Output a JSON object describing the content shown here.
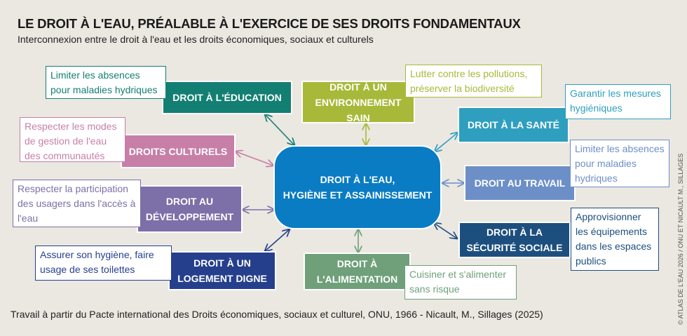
{
  "title": "LE DROIT À L'EAU, PRÉALABLE À L'EXERCICE DE SES DROITS FONDAMENTAUX",
  "subtitle": "Interconnexion entre le droit à l'eau et les droits économiques, sociaux et culturels",
  "center": {
    "line1": "DROIT À L'EAU,",
    "line2": "HYGIÈNE ET ASSAINISSEMENT",
    "color": "#0a7cc3"
  },
  "rights": [
    {
      "l1": "DROIT À L'ÉDUCATION",
      "l2": "",
      "note": "Limiter les absences pour maladies hydriques",
      "color": "#137f73"
    },
    {
      "l1": "DROITS CULTURELS",
      "l2": "",
      "note": "Respecter les modes de gestion de l'eau des communautés",
      "color": "#c77fa8"
    },
    {
      "l1": "DROIT AU",
      "l2": "DÉVELOPPEMENT",
      "note": "Respecter la participation des usagers dans l'accès à l'eau",
      "color": "#7d6fa8"
    },
    {
      "l1": "DROIT À UN",
      "l2": "LOGEMENT DIGNE",
      "note": "Assurer son hygiène, faire usage de ses toilettes",
      "color": "#263f8c"
    },
    {
      "l1": "DROIT À UN",
      "l2": "ENVIRONNEMENT SAIN",
      "note": "Lutter contre les pollutions, préserver la biodiversité",
      "color": "#a8b93a"
    },
    {
      "l1": "DROIT À LA SANTÉ",
      "l2": "",
      "note": "Garantir les mesures hygiéniques",
      "color": "#2f9fbf"
    },
    {
      "l1": "DROIT AU TRAVAIL",
      "l2": "",
      "note": "Limiter les absences pour maladies hydriques",
      "color": "#6d8fc8"
    },
    {
      "l1": "DROIT À LA",
      "l2": "SÉCURITÉ SOCIALE",
      "note": "Approvisionner les équipements dans les espaces publics",
      "color": "#1d4f7e"
    },
    {
      "l1": "DROIT À",
      "l2": "L'ALIMENTATION",
      "note": "Cuisiner et s'alimenter sans risque",
      "color": "#6fa07a"
    }
  ],
  "footer": "Travail à partir du Pacte international des Droits économiques, sociaux et culturel, ONU, 1966 - Nicault, M., Sillages (2025)",
  "credit": "© ATLAS DE L'EAU 2026 / ONU ET NICAULT M., SILLAGES"
}
